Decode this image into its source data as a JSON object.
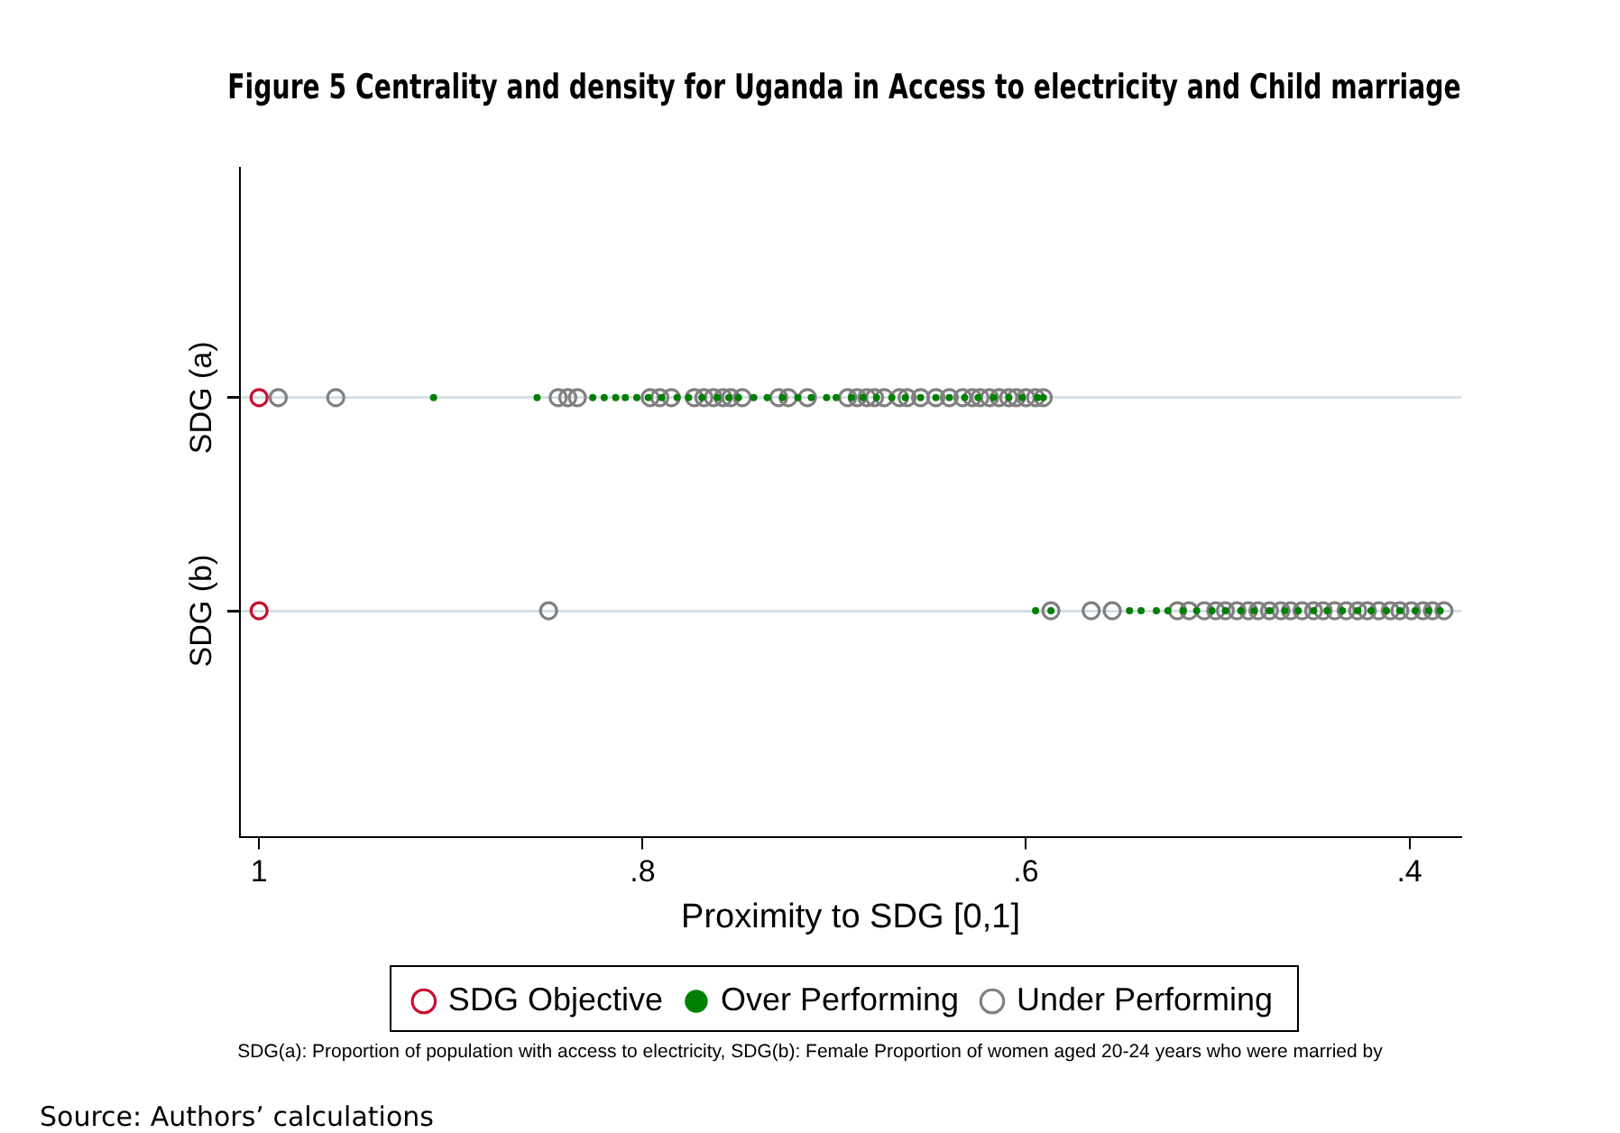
{
  "chart_data": {
    "type": "scatter",
    "title": "Figure 5 Centrality and density for Uganda in Access to electricity and Child marriage",
    "xlabel": "Proximity to SDG [0,1]",
    "orientation": "horizontal",
    "categories": [
      "SDG (a)",
      "SDG (b)"
    ],
    "xlim": [
      1.01,
      0.373
    ],
    "xticks": [
      {
        "value": 1,
        "label": "1"
      },
      {
        "value": 0.8,
        "label": ".8"
      },
      {
        "value": 0.6,
        "label": ".6"
      },
      {
        "value": 0.4,
        "label": ".4"
      }
    ],
    "grid": "y",
    "legend": "bottom",
    "series": [
      {
        "name": "SDG Objective",
        "color": "#c8102e",
        "marker": "circle",
        "x": [
          "SDG (a)",
          "SDG (b)"
        ],
        "values": [
          1,
          1
        ]
      },
      {
        "name": "Over Performing",
        "color": "#008000",
        "marker": "dot",
        "x": [
          "SDG (a)",
          "SDG (a)",
          "SDG (a)",
          "SDG (a)",
          "SDG (a)",
          "SDG (a)",
          "SDG (a)",
          "SDG (a)",
          "SDG (a)",
          "SDG (a)",
          "SDG (a)",
          "SDG (a)",
          "SDG (a)",
          "SDG (a)",
          "SDG (a)",
          "SDG (a)",
          "SDG (a)",
          "SDG (a)",
          "SDG (a)",
          "SDG (a)",
          "SDG (a)",
          "SDG (a)",
          "SDG (a)",
          "SDG (a)",
          "SDG (a)",
          "SDG (a)",
          "SDG (a)",
          "SDG (a)",
          "SDG (a)",
          "SDG (a)",
          "SDG (a)",
          "SDG (a)",
          "SDG (a)",
          "SDG (a)",
          "SDG (a)",
          "SDG (a)",
          "SDG (a)",
          "SDG (b)",
          "SDG (b)",
          "SDG (b)",
          "SDG (b)",
          "SDG (b)",
          "SDG (b)",
          "SDG (b)",
          "SDG (b)",
          "SDG (b)",
          "SDG (b)",
          "SDG (b)",
          "SDG (b)",
          "SDG (b)",
          "SDG (b)",
          "SDG (b)",
          "SDG (b)",
          "SDG (b)",
          "SDG (b)",
          "SDG (b)",
          "SDG (b)",
          "SDG (b)",
          "SDG (b)",
          "SDG (b)",
          "SDG (b)",
          "SDG (b)"
        ],
        "values": [
          0.909,
          0.855,
          0.826,
          0.82,
          0.814,
          0.809,
          0.803,
          0.797,
          0.79,
          0.782,
          0.776,
          0.769,
          0.761,
          0.755,
          0.75,
          0.742,
          0.735,
          0.727,
          0.719,
          0.712,
          0.704,
          0.699,
          0.691,
          0.685,
          0.678,
          0.67,
          0.663,
          0.655,
          0.647,
          0.64,
          0.632,
          0.625,
          0.617,
          0.609,
          0.602,
          0.594,
          0.591,
          0.595,
          0.587,
          0.546,
          0.54,
          0.532,
          0.526,
          0.518,
          0.511,
          0.503,
          0.496,
          0.488,
          0.481,
          0.473,
          0.465,
          0.458,
          0.45,
          0.443,
          0.435,
          0.427,
          0.42,
          0.412,
          0.405,
          0.397,
          0.39,
          0.384
        ]
      },
      {
        "name": "Under Performing",
        "color": "#808080",
        "marker": "circle",
        "x": [
          "SDG (a)",
          "SDG (a)",
          "SDG (a)",
          "SDG (a)",
          "SDG (a)",
          "SDG (a)",
          "SDG (a)",
          "SDG (a)",
          "SDG (a)",
          "SDG (a)",
          "SDG (a)",
          "SDG (a)",
          "SDG (a)",
          "SDG (a)",
          "SDG (a)",
          "SDG (a)",
          "SDG (a)",
          "SDG (a)",
          "SDG (a)",
          "SDG (a)",
          "SDG (a)",
          "SDG (a)",
          "SDG (a)",
          "SDG (a)",
          "SDG (a)",
          "SDG (a)",
          "SDG (a)",
          "SDG (a)",
          "SDG (a)",
          "SDG (a)",
          "SDG (a)",
          "SDG (a)",
          "SDG (a)",
          "SDG (a)",
          "SDG (a)",
          "SDG (a)",
          "SDG (a)",
          "SDG (b)",
          "SDG (b)",
          "SDG (b)",
          "SDG (b)",
          "SDG (b)",
          "SDG (b)",
          "SDG (b)",
          "SDG (b)",
          "SDG (b)",
          "SDG (b)",
          "SDG (b)",
          "SDG (b)",
          "SDG (b)",
          "SDG (b)",
          "SDG (b)",
          "SDG (b)",
          "SDG (b)",
          "SDG (b)",
          "SDG (b)",
          "SDG (b)",
          "SDG (b)",
          "SDG (b)",
          "SDG (b)",
          "SDG (b)",
          "SDG (b)",
          "SDG (b)",
          "SDG (b)",
          "SDG (b)",
          "SDG (b)"
        ],
        "values": [
          0.99,
          0.96,
          0.844,
          0.839,
          0.834,
          0.796,
          0.791,
          0.785,
          0.773,
          0.768,
          0.763,
          0.758,
          0.754,
          0.748,
          0.729,
          0.724,
          0.714,
          0.693,
          0.688,
          0.683,
          0.679,
          0.674,
          0.666,
          0.662,
          0.655,
          0.647,
          0.64,
          0.633,
          0.628,
          0.624,
          0.619,
          0.614,
          0.609,
          0.605,
          0.6,
          0.595,
          0.591,
          0.849,
          0.587,
          0.566,
          0.555,
          0.521,
          0.515,
          0.507,
          0.501,
          0.496,
          0.49,
          0.484,
          0.479,
          0.473,
          0.467,
          0.462,
          0.456,
          0.45,
          0.445,
          0.439,
          0.433,
          0.427,
          0.422,
          0.416,
          0.41,
          0.405,
          0.399,
          0.393,
          0.388,
          0.382
        ]
      }
    ],
    "annotations": [
      "SDG(a): Proportion of population with access to electricity,  SDG(b): Female Proportion of women aged 20-24 years who were married by",
      "Source: Authors’ calculations"
    ]
  }
}
